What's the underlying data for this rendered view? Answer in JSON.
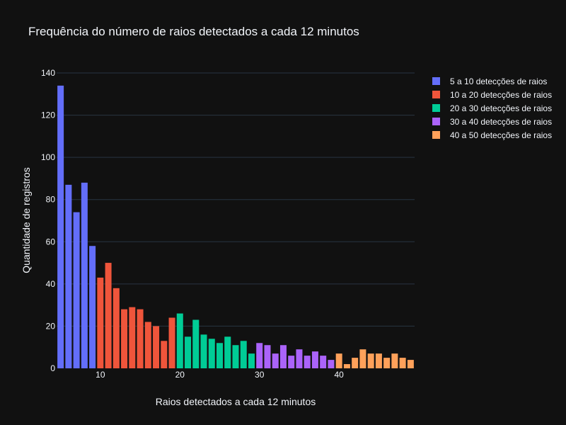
{
  "colors": {
    "background": "#111111",
    "gridline": "#283442",
    "text": "#f2f5fa"
  },
  "chart_data": {
    "type": "bar",
    "title": "Frequência do número de raios detectados a cada 12 minutos",
    "xlabel": "Raios detectados a cada 12 minutos",
    "ylabel": "Quantidade de registros",
    "xlim": [
      4.5,
      49.5
    ],
    "ylim": [
      0,
      140
    ],
    "x_ticks": [
      10,
      20,
      30,
      40
    ],
    "y_ticks": [
      0,
      20,
      40,
      60,
      80,
      100,
      120,
      140
    ],
    "grid": true,
    "legend_position": "right",
    "series": [
      {
        "name": "5 a 10 detecções de raios",
        "color": "#636efa",
        "x": [
          5,
          6,
          7,
          8,
          9
        ],
        "values": [
          134,
          87,
          74,
          88,
          58
        ]
      },
      {
        "name": "10 a 20 detecções de raios",
        "color": "#ef553b",
        "x": [
          10,
          11,
          12,
          13,
          14,
          15,
          16,
          17,
          18,
          19
        ],
        "values": [
          43,
          50,
          38,
          28,
          29,
          28,
          22,
          20,
          13,
          24
        ]
      },
      {
        "name": "20 a 30 detecções de raios",
        "color": "#00cc96",
        "x": [
          20,
          21,
          22,
          23,
          24,
          25,
          26,
          27,
          28,
          29
        ],
        "values": [
          26,
          15,
          23,
          16,
          14,
          12,
          15,
          11,
          13,
          7
        ]
      },
      {
        "name": "30 a 40 detecções de raios",
        "color": "#ab63fa",
        "x": [
          30,
          31,
          32,
          33,
          34,
          35,
          36,
          37,
          38,
          39
        ],
        "values": [
          12,
          11,
          7,
          11,
          6,
          9,
          6,
          8,
          6,
          4
        ]
      },
      {
        "name": "40 a 50 detecções de raios",
        "color": "#ffa15a",
        "x": [
          40,
          41,
          42,
          43,
          44,
          45,
          46,
          47,
          48,
          49
        ],
        "values": [
          7,
          2,
          5,
          9,
          7,
          7,
          5,
          7,
          5,
          4
        ]
      }
    ]
  }
}
